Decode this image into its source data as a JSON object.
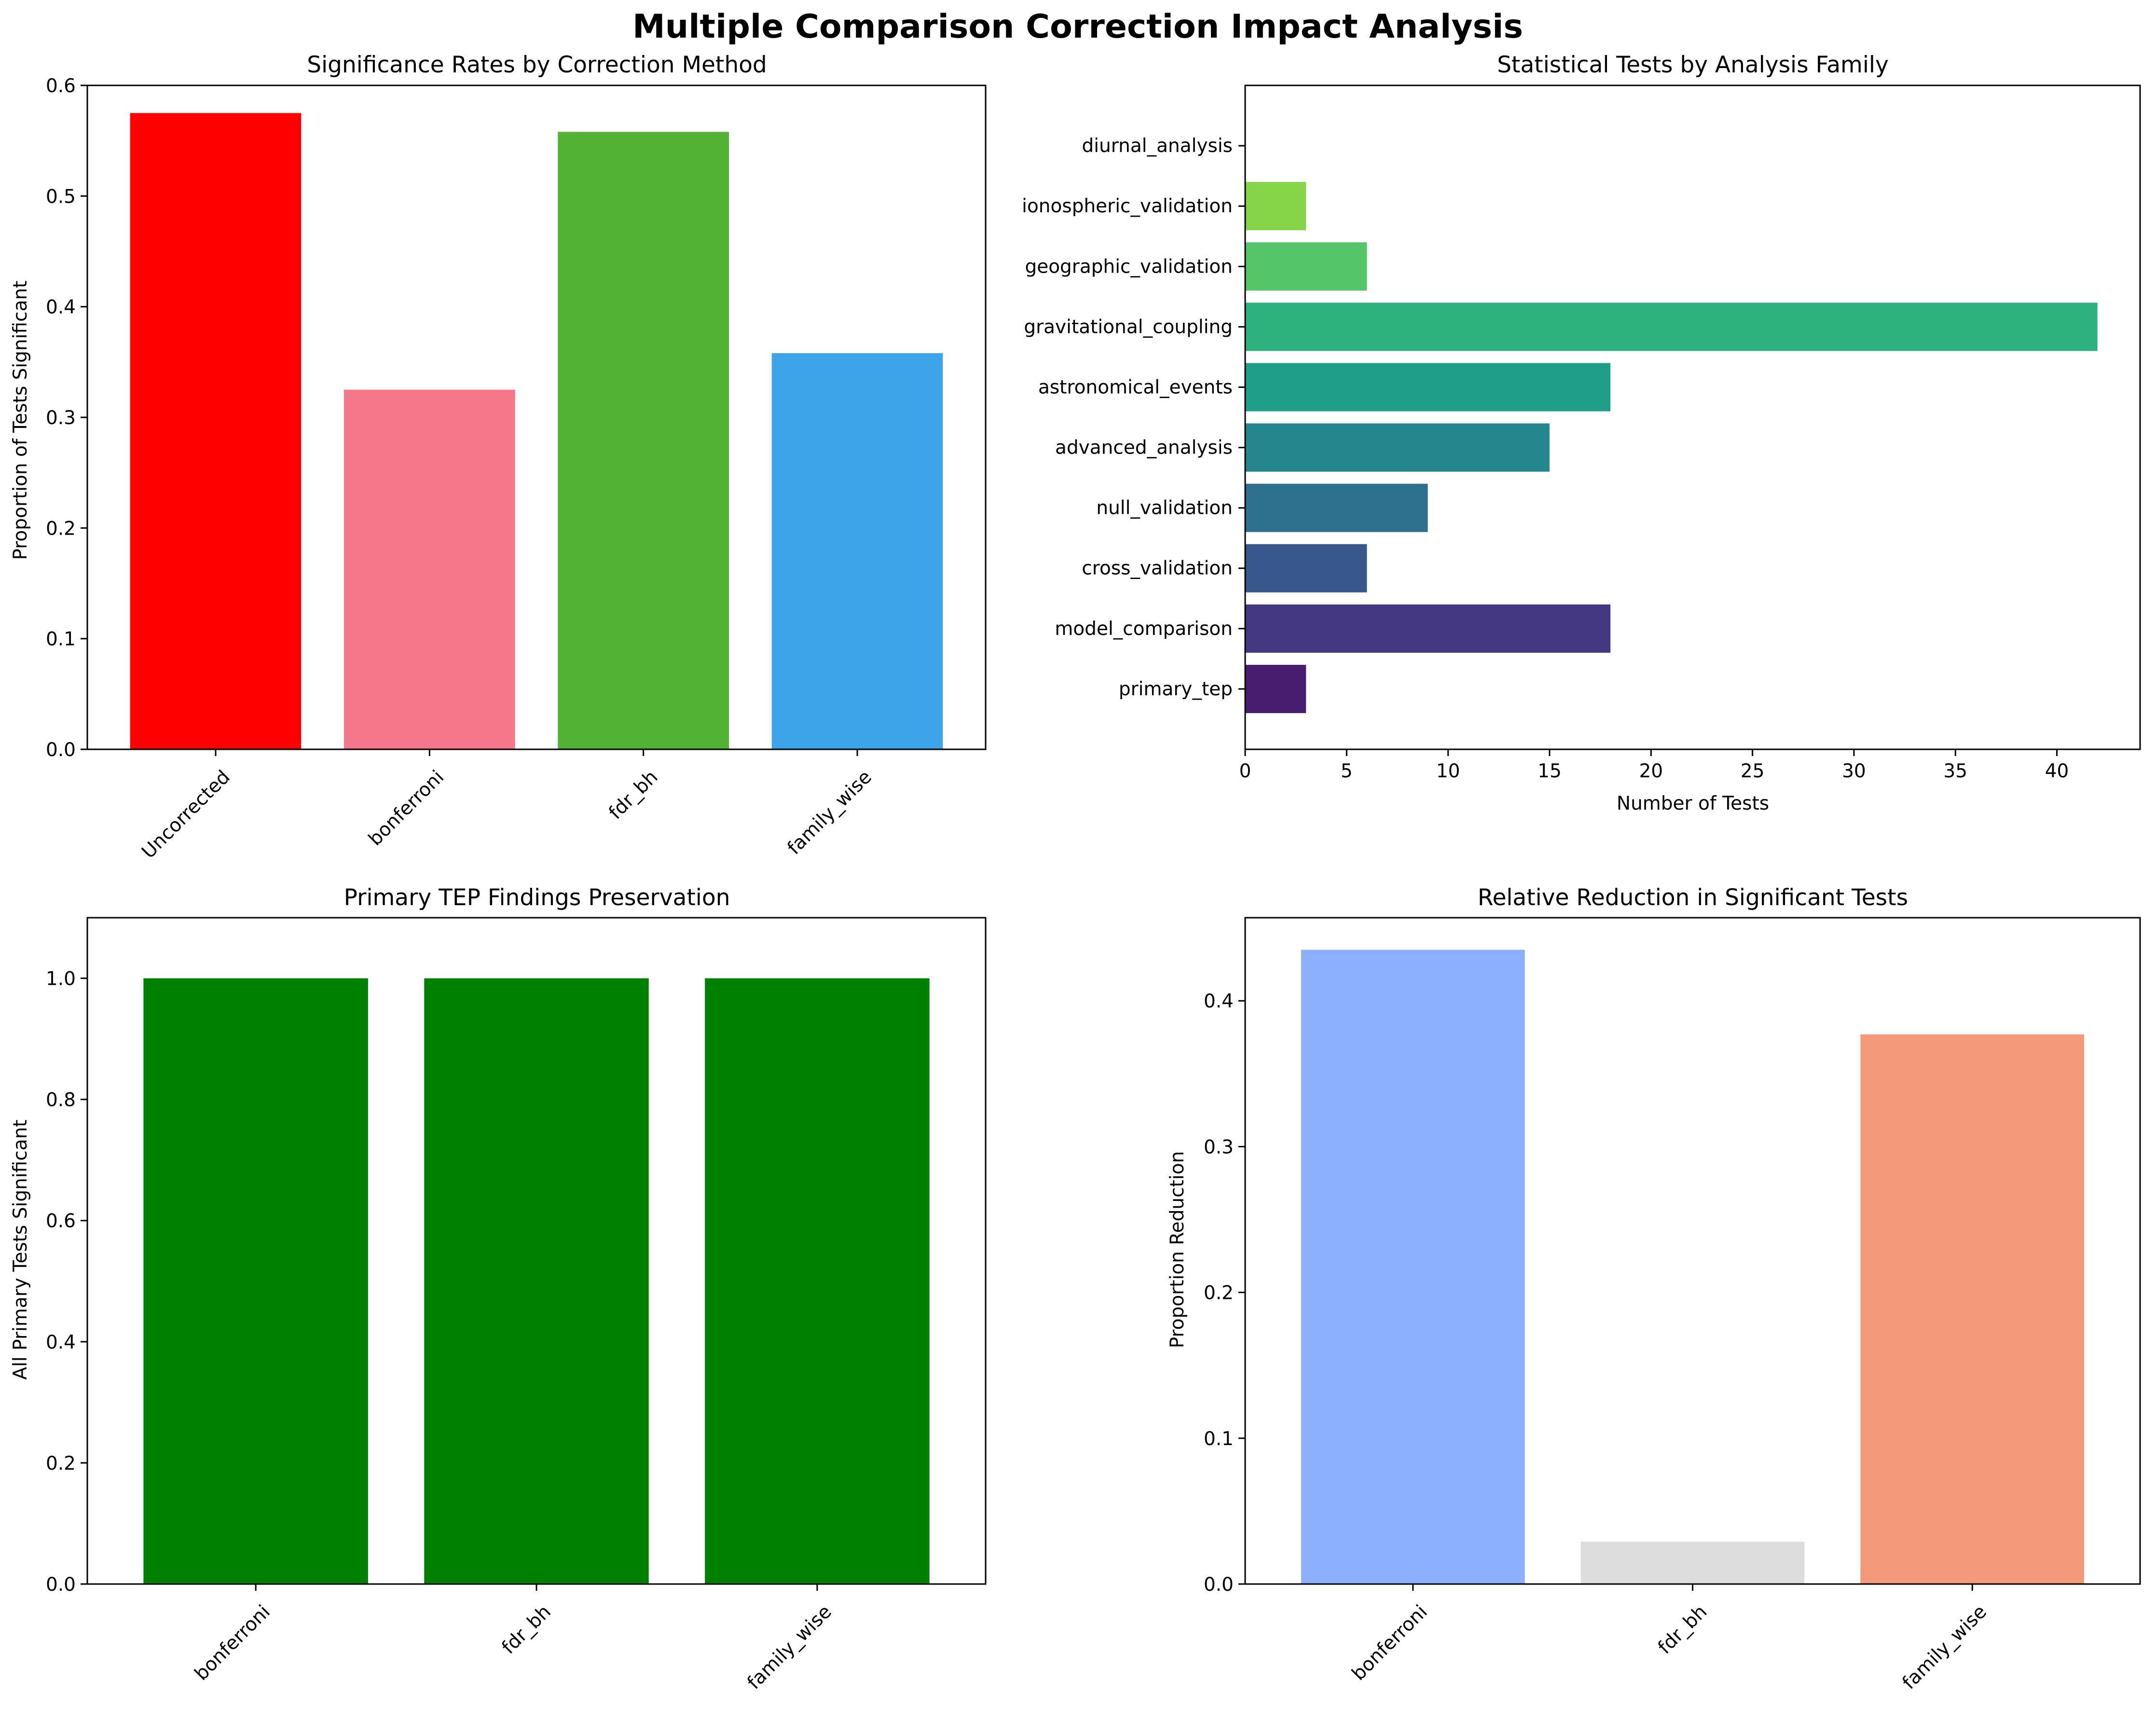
{
  "figure_title": "Multiple Comparison Correction Impact Analysis",
  "chart_data": [
    {
      "type": "bar",
      "title": "Significance Rates by Correction Method",
      "xlabel": "",
      "ylabel": "Proportion of Tests Significant",
      "categories": [
        "Uncorrected",
        "bonferroni",
        "fdr_bh",
        "family_wise"
      ],
      "values": [
        0.575,
        0.325,
        0.558,
        0.358
      ],
      "colors": [
        "#ff0000",
        "#f6768a",
        "#52b234",
        "#3ea4ea"
      ],
      "ylim": [
        0,
        0.6
      ],
      "yticks": [
        0.0,
        0.1,
        0.2,
        0.3,
        0.4,
        0.5,
        0.6
      ],
      "ytick_labels": [
        "0.0",
        "0.1",
        "0.2",
        "0.3",
        "0.4",
        "0.5",
        "0.6"
      ],
      "x_tick_rotation": 45,
      "grid": false
    },
    {
      "type": "bar",
      "orientation": "horizontal",
      "title": "Statistical Tests by Analysis Family",
      "xlabel": "Number of Tests",
      "ylabel": "",
      "categories": [
        "primary_tep",
        "model_comparison",
        "cross_validation",
        "null_validation",
        "advanced_analysis",
        "astronomical_events",
        "gravitational_coupling",
        "geographic_validation",
        "ionospheric_validation",
        "diurnal_analysis"
      ],
      "values": [
        3,
        18,
        6,
        9,
        15,
        18,
        42,
        6,
        3,
        0
      ],
      "colors": [
        "#481c6e",
        "#453882",
        "#38588c",
        "#2d718e",
        "#24878e",
        "#1f9e89",
        "#2db27d",
        "#54c568",
        "#86d549",
        "#fde725"
      ],
      "xlim": [
        0,
        44.1
      ],
      "xticks": [
        0,
        5,
        10,
        15,
        20,
        25,
        30,
        35,
        40
      ],
      "xtick_labels": [
        "0",
        "5",
        "10",
        "15",
        "20",
        "25",
        "30",
        "35",
        "40"
      ],
      "grid": false
    },
    {
      "type": "bar",
      "title": "Primary TEP Findings Preservation",
      "xlabel": "",
      "ylabel": "All Primary Tests Significant",
      "categories": [
        "bonferroni",
        "fdr_bh",
        "family_wise"
      ],
      "values": [
        1.0,
        1.0,
        1.0
      ],
      "colors": [
        "#008000",
        "#008000",
        "#008000"
      ],
      "ylim": [
        0,
        1.1
      ],
      "yticks": [
        0.0,
        0.2,
        0.4,
        0.6,
        0.8,
        1.0
      ],
      "ytick_labels": [
        "0.0",
        "0.2",
        "0.4",
        "0.6",
        "0.8",
        "1.0"
      ],
      "x_tick_rotation": 45,
      "grid": false
    },
    {
      "type": "bar",
      "title": "Relative Reduction in Significant Tests",
      "xlabel": "",
      "ylabel": "Proportion Reduction",
      "categories": [
        "bonferroni",
        "fdr_bh",
        "family_wise"
      ],
      "values": [
        0.435,
        0.029,
        0.377
      ],
      "colors": [
        "#8db0fe",
        "#dddddd",
        "#f49a7b"
      ],
      "ylim": [
        0,
        0.457
      ],
      "yticks": [
        0.0,
        0.1,
        0.2,
        0.3,
        0.4
      ],
      "ytick_labels": [
        "0.0",
        "0.1",
        "0.2",
        "0.3",
        "0.4"
      ],
      "x_tick_rotation": 45,
      "grid": false
    }
  ]
}
